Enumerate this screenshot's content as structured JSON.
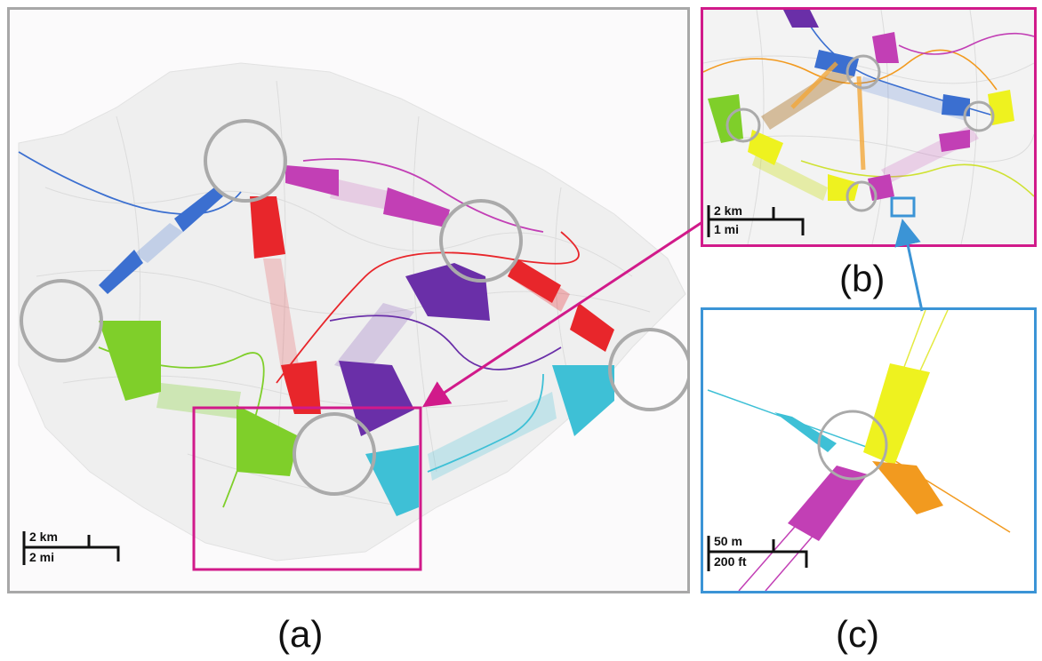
{
  "captions": {
    "a": "(a)",
    "b": "(b)",
    "c": "(c)"
  },
  "scalebars": {
    "a": {
      "top": "2 km",
      "bottom": "2 mi"
    },
    "b": {
      "top": "2 km",
      "bottom": "1 mi"
    },
    "c": {
      "top": "50 m",
      "bottom": "200 ft"
    }
  },
  "colors": {
    "frame_a": "#a8a8a8",
    "frame_b": "#d11a8a",
    "frame_c": "#3b94d6",
    "blue": "#3b6fd0",
    "red": "#e8262b",
    "magenta": "#c23fb5",
    "purple": "#6a2fa8",
    "green": "#7fcf2a",
    "cyan": "#3ec0d6",
    "yellow": "#eef21f",
    "orange": "#f29a1f",
    "roads": "#dcdcdc",
    "land": "#efefef"
  }
}
